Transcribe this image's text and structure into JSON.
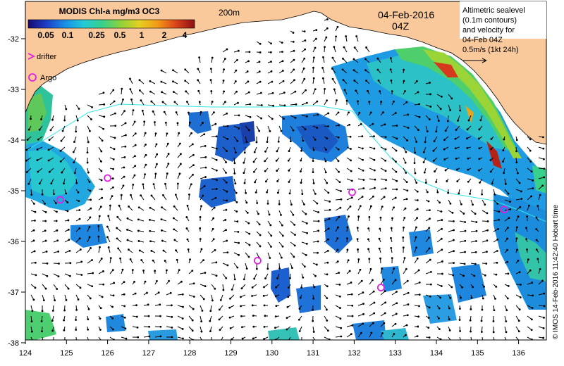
{
  "colorbar": {
    "title": "MODIS Chl-a mg/m3 OC3",
    "tick_labels": [
      "0.05",
      "0.1",
      "0.25",
      "0.5",
      "1",
      "2",
      "4"
    ],
    "colors": [
      "#140a70",
      "#1e3fc8",
      "#1a8fe6",
      "#22c9d6",
      "#37d18c",
      "#8ed23a",
      "#e4d020",
      "#f29a17",
      "#d9431a",
      "#8b0f12"
    ]
  },
  "contour_label": "200m",
  "date": "04-Feb-2016",
  "time": "04Z",
  "legend": {
    "drifter": "drifter",
    "argo": "Argo"
  },
  "info_box": {
    "lines": [
      "Altimetric sealevel",
      "(0.1m contours)",
      "and velocity for",
      "04-Feb 04Z",
      "0.5m/s (1kt 24h)"
    ]
  },
  "credit": "© IMOS 14-Feb-2016 11:42:40 Hobart time",
  "axes": {
    "lon_ticks": [
      "124",
      "125",
      "126",
      "127",
      "128",
      "129",
      "130",
      "131",
      "132",
      "133",
      "134",
      "135",
      "136"
    ],
    "lat_ticks": [
      "-32",
      "-33",
      "-34",
      "-35",
      "-36",
      "-37",
      "-38"
    ]
  },
  "colors": {
    "land": "#f9c89b",
    "ocean": "#ffffff",
    "contour": "#33e6e6",
    "marker": "#e020e0",
    "arrow": "#000000"
  },
  "argo_floats": [
    {
      "lon": 124.85,
      "lat": -35.18
    },
    {
      "lon": 126.0,
      "lat": -34.75
    },
    {
      "lon": 129.65,
      "lat": -36.38
    },
    {
      "lon": 131.95,
      "lat": -35.03
    },
    {
      "lon": 132.65,
      "lat": -36.91
    },
    {
      "lon": 135.65,
      "lat": -35.37
    }
  ]
}
